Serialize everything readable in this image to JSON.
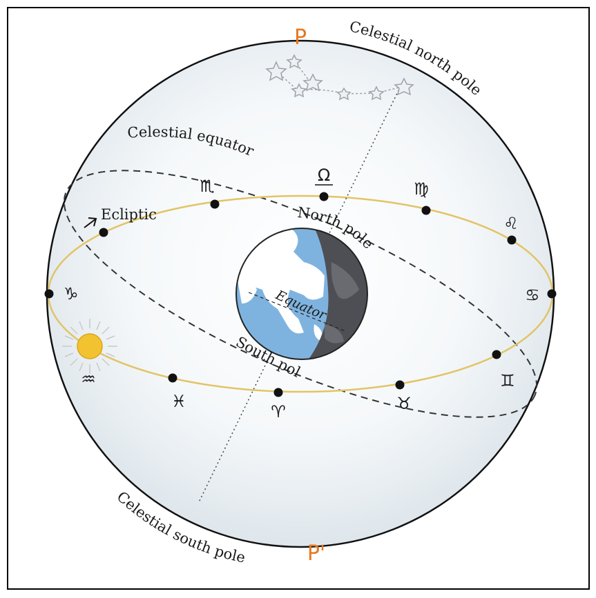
{
  "labels": {
    "pole_top": "P",
    "pole_bottom": "P'",
    "celestial_north_pole": "Celestial north pole",
    "celestial_south_pole": "Celestial south pole",
    "celestial_equator": "Celestial equator",
    "ecliptic": "Ecliptic",
    "north_pole": "North pole",
    "south_pole": "South pole",
    "equator": "Equator",
    "node": "Ω"
  },
  "zodiac": {
    "capricorn": "♑",
    "aquarius": "♒",
    "pisces": "♓",
    "aries": "♈",
    "taurus": "♉",
    "gemini": "♊",
    "cancer": "♋",
    "leo": "♌",
    "virgo": "♍",
    "scorpio": "♏"
  },
  "colors": {
    "pole_letter": "#e8771e",
    "ecliptic": "#e2c466",
    "sun": "#f2c230",
    "ocean": "#7fb3df",
    "night": "#4e4f54",
    "sphere_tint": "#dfe7ec"
  }
}
